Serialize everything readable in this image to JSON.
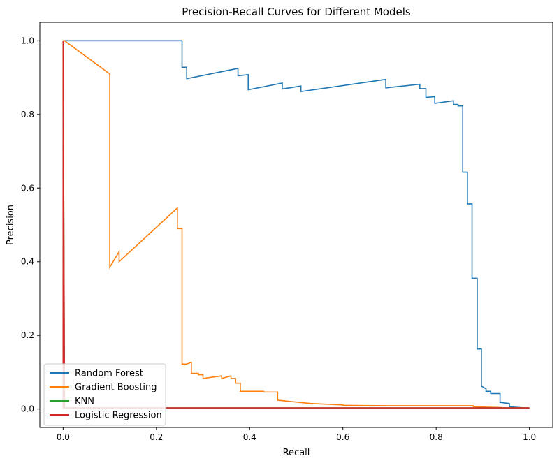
{
  "chart_data": {
    "type": "line",
    "title": "Precision-Recall Curves for Different Models",
    "xlabel": "Recall",
    "ylabel": "Precision",
    "xlim": [
      -0.05,
      1.05
    ],
    "ylim": [
      -0.05,
      1.05
    ],
    "x_ticks": [
      "0.0",
      "0.2",
      "0.4",
      "0.6",
      "0.8",
      "1.0"
    ],
    "y_ticks": [
      "0.0",
      "0.2",
      "0.4",
      "0.6",
      "0.8",
      "1.0"
    ],
    "grid": false,
    "legend_position": "lower-left",
    "series": [
      {
        "name": "Random Forest",
        "color": "#1f77b4",
        "x": [
          0.0,
          0.0,
          0.255,
          0.255,
          0.265,
          0.265,
          0.375,
          0.375,
          0.397,
          0.397,
          0.47,
          0.47,
          0.51,
          0.51,
          0.692,
          0.692,
          0.765,
          0.765,
          0.778,
          0.778,
          0.797,
          0.797,
          0.837,
          0.837,
          0.847,
          0.847,
          0.857,
          0.857,
          0.867,
          0.867,
          0.877,
          0.877,
          0.888,
          0.888,
          0.897,
          0.897,
          0.907,
          0.907,
          0.917,
          0.917,
          0.937,
          0.937,
          0.957,
          0.957,
          1.0
        ],
        "y": [
          0.0,
          1.0,
          1.0,
          0.928,
          0.928,
          0.897,
          0.925,
          0.905,
          0.908,
          0.867,
          0.885,
          0.869,
          0.877,
          0.862,
          0.895,
          0.872,
          0.882,
          0.87,
          0.87,
          0.846,
          0.848,
          0.83,
          0.837,
          0.827,
          0.827,
          0.823,
          0.823,
          0.643,
          0.643,
          0.557,
          0.557,
          0.355,
          0.355,
          0.163,
          0.163,
          0.062,
          0.055,
          0.048,
          0.048,
          0.042,
          0.042,
          0.018,
          0.015,
          0.006,
          0.002
        ]
      },
      {
        "name": "Gradient Boosting",
        "color": "#ff7f0e",
        "x": [
          0.0,
          0.0,
          0.003,
          0.003,
          0.1,
          0.1,
          0.12,
          0.12,
          0.245,
          0.245,
          0.255,
          0.255,
          0.265,
          0.265,
          0.275,
          0.275,
          0.29,
          0.29,
          0.3,
          0.3,
          0.34,
          0.34,
          0.36,
          0.36,
          0.37,
          0.37,
          0.38,
          0.38,
          0.39,
          0.39,
          0.43,
          0.43,
          0.46,
          0.46,
          0.49,
          0.49,
          0.53,
          0.53,
          0.6,
          0.6,
          0.7,
          0.7,
          0.88,
          0.88,
          0.94,
          0.94,
          1.0
        ],
        "y": [
          0.0,
          1.0,
          1.0,
          1.0,
          0.91,
          0.385,
          0.427,
          0.4,
          0.546,
          0.49,
          0.49,
          0.122,
          0.122,
          0.122,
          0.127,
          0.097,
          0.097,
          0.093,
          0.093,
          0.083,
          0.09,
          0.083,
          0.09,
          0.083,
          0.083,
          0.07,
          0.07,
          0.048,
          0.048,
          0.048,
          0.048,
          0.046,
          0.046,
          0.024,
          0.02,
          0.02,
          0.015,
          0.015,
          0.011,
          0.01,
          0.009,
          0.009,
          0.009,
          0.006,
          0.004,
          0.003,
          0.003
        ]
      },
      {
        "name": "KNN",
        "color": "#2ca02c",
        "x": [
          0.0,
          0.0,
          0.003,
          1.0
        ],
        "y": [
          0.0,
          1.0,
          0.003,
          0.003
        ]
      },
      {
        "name": "Logistic Regression",
        "color": "#d62728",
        "x": [
          0.0,
          0.0,
          0.003,
          1.0
        ],
        "y": [
          0.0,
          1.0,
          0.003,
          0.003
        ]
      }
    ]
  }
}
